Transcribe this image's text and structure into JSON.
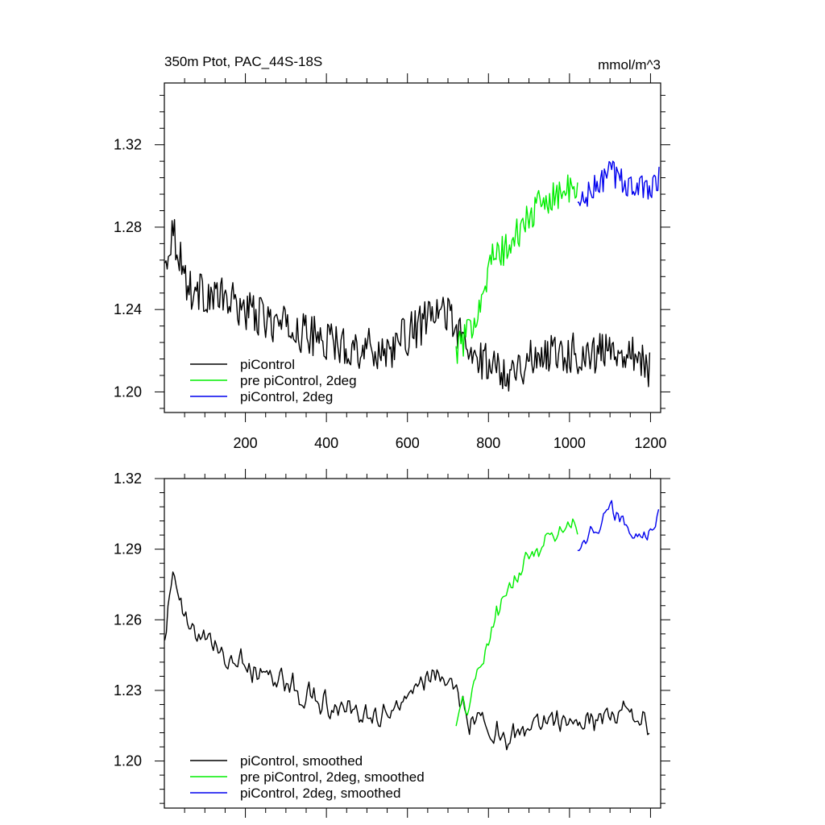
{
  "chart_data": [
    {
      "type": "line",
      "title": "350m Ptot, PAC_44S-18S",
      "units": "mmol/m^3",
      "xlim": [
        0,
        1225
      ],
      "ylim": [
        1.19,
        1.35
      ],
      "y_major_ticks": [
        1.2,
        1.24,
        1.28,
        1.32
      ],
      "x_major_ticks": [
        200,
        400,
        600,
        800,
        1000,
        1200
      ],
      "x_tick_labels_shown": true,
      "grid": false,
      "legend": "bottom-left",
      "series": [
        {
          "name": "piControl",
          "color": "#000000",
          "x_start": 1,
          "x_end": 1200,
          "mean": 1.222,
          "trend": -2e-05,
          "amplitude": 0.01
        },
        {
          "name": "pre piControl, 2deg",
          "color": "#00ee00",
          "x_start": 720,
          "x_end": 1020,
          "mean": 1.285,
          "trend": 0.0003,
          "amplitude": 0.008
        },
        {
          "name": "piControl, 2deg",
          "color": "#0000ee",
          "x_start": 1020,
          "x_end": 1222,
          "mean": 1.303,
          "trend": 3e-05,
          "amplitude": 0.007
        }
      ],
      "key_points": {
        "piControl": [
          [
            1,
            1.26
          ],
          [
            20,
            1.28
          ],
          [
            60,
            1.25
          ],
          [
            150,
            1.245
          ],
          [
            250,
            1.235
          ],
          [
            350,
            1.228
          ],
          [
            450,
            1.222
          ],
          [
            550,
            1.22
          ],
          [
            650,
            1.235
          ],
          [
            700,
            1.24
          ],
          [
            750,
            1.218
          ],
          [
            850,
            1.21
          ],
          [
            950,
            1.22
          ],
          [
            1050,
            1.218
          ],
          [
            1150,
            1.222
          ],
          [
            1200,
            1.21
          ]
        ],
        "pre piControl, 2deg": [
          [
            720,
            1.22
          ],
          [
            750,
            1.228
          ],
          [
            780,
            1.245
          ],
          [
            810,
            1.265
          ],
          [
            850,
            1.27
          ],
          [
            900,
            1.285
          ],
          [
            950,
            1.295
          ],
          [
            1000,
            1.298
          ],
          [
            1020,
            1.295
          ]
        ],
        "piControl, 2deg": [
          [
            1020,
            1.29
          ],
          [
            1060,
            1.298
          ],
          [
            1100,
            1.307
          ],
          [
            1150,
            1.3
          ],
          [
            1190,
            1.298
          ],
          [
            1222,
            1.305
          ]
        ]
      }
    },
    {
      "type": "line",
      "title": "",
      "units": "",
      "xlim": [
        0,
        1225
      ],
      "ylim": [
        1.18,
        1.32
      ],
      "y_major_ticks": [
        1.2,
        1.23,
        1.26,
        1.29,
        1.32
      ],
      "x_major_ticks": [
        200,
        400,
        600,
        800,
        1000,
        1200
      ],
      "x_tick_labels_shown": false,
      "grid": false,
      "legend": "bottom-left",
      "series": [
        {
          "name": "piControl, smoothed",
          "color": "#000000",
          "x_start": 1,
          "x_end": 1200,
          "mean": 1.222,
          "trend": -2e-05,
          "amplitude": 0.007
        },
        {
          "name": "pre piControl, 2deg, smoothed",
          "color": "#00ee00",
          "x_start": 720,
          "x_end": 1020,
          "mean": 1.285,
          "trend": 0.0003,
          "amplitude": 0.006
        },
        {
          "name": "piControl, 2deg, smoothed",
          "color": "#0000ee",
          "x_start": 1020,
          "x_end": 1222,
          "mean": 1.303,
          "trend": 3e-05,
          "amplitude": 0.005
        }
      ],
      "key_points": {
        "piControl, smoothed": [
          [
            1,
            1.255
          ],
          [
            20,
            1.278
          ],
          [
            60,
            1.255
          ],
          [
            150,
            1.245
          ],
          [
            250,
            1.238
          ],
          [
            350,
            1.228
          ],
          [
            450,
            1.222
          ],
          [
            550,
            1.22
          ],
          [
            650,
            1.235
          ],
          [
            700,
            1.238
          ],
          [
            750,
            1.218
          ],
          [
            850,
            1.21
          ],
          [
            950,
            1.218
          ],
          [
            1050,
            1.218
          ],
          [
            1150,
            1.222
          ],
          [
            1200,
            1.214
          ]
        ],
        "pre piControl, 2deg, smoothed": [
          [
            720,
            1.218
          ],
          [
            750,
            1.225
          ],
          [
            780,
            1.24
          ],
          [
            810,
            1.258
          ],
          [
            850,
            1.272
          ],
          [
            900,
            1.287
          ],
          [
            950,
            1.295
          ],
          [
            1000,
            1.302
          ],
          [
            1020,
            1.296
          ]
        ],
        "piControl, 2deg, smoothed": [
          [
            1020,
            1.292
          ],
          [
            1060,
            1.298
          ],
          [
            1100,
            1.307
          ],
          [
            1150,
            1.3
          ],
          [
            1190,
            1.295
          ],
          [
            1222,
            1.306
          ]
        ]
      }
    }
  ]
}
